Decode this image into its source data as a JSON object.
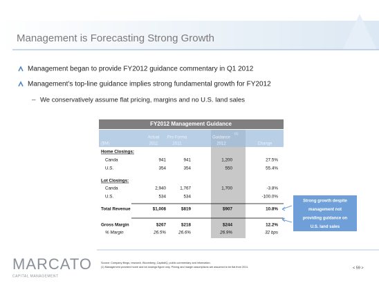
{
  "header": {
    "title": "Management is Forecasting Strong Growth"
  },
  "bullets": [
    "Management began to provide FY2012 guidance commentary in Q1 2012",
    "Management’s top-line guidance implies strong fundamental growth for FY2012"
  ],
  "sub_bullets": [
    "We conservatively assume flat pricing, margins and no U.S. land sales"
  ],
  "table": {
    "title": "FY2012 Management Guidance",
    "unit": "($M)",
    "columns": [
      {
        "top": "Actual",
        "bottom": "2011"
      },
      {
        "top": "Pro Forma",
        "bottom": "2011"
      },
      {
        "top": "Guidance",
        "note": "(1)",
        "bottom": "2012"
      },
      {
        "bottom": "Change"
      }
    ],
    "rows": [
      {
        "label": "Home Closings:"
      },
      {
        "label": "Canda",
        "cells": [
          "941",
          "941",
          "1,200",
          "27.5%"
        ]
      },
      {
        "label": "U.S.",
        "cells": [
          "354",
          "354",
          "550",
          "55.4%"
        ]
      },
      {
        "label": "Lot Closings:"
      },
      {
        "label": "Canda",
        "cells": [
          "2,940",
          "1,767",
          "1,700",
          "-3.8%"
        ]
      },
      {
        "label": "U.S.",
        "cells": [
          "534",
          "534",
          "",
          "-100.0%"
        ]
      },
      {
        "label": "Total Revenue",
        "cells": [
          "$1,008",
          "$819",
          "$907",
          "10.8%"
        ]
      },
      {
        "label": "Gross Margin",
        "cells": [
          "$267",
          "$218",
          "$244",
          "12.2%"
        ]
      },
      {
        "label": "% Margin",
        "cells": [
          "26.5%",
          "26.6%",
          "26.9%",
          "32 bps"
        ]
      }
    ]
  },
  "callout": [
    "Strong growth despite",
    "management not",
    "providing guidance on",
    "U.S. land sales"
  ],
  "footer": {
    "logo": "MARCATO",
    "logo_sub": "CAPITAL MANAGEMENT",
    "notes": [
      "Source: Company filings, research, Bloomberg, CapitalIQ, public commentary and information.",
      "(1)     Management provided home and lot closings figure only.  Pricing and margin assumptions are assumed to be flat from 2011."
    ],
    "page": "< 59 >"
  }
}
